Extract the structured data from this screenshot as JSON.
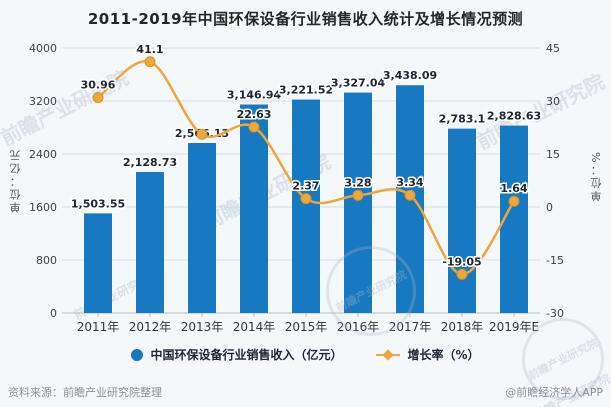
{
  "title": "2011-2019年中国环保设备行业销售收入统计及增长情况预测",
  "left_axis": {
    "unit": "单位：亿元",
    "ticks": [
      0,
      800,
      1600,
      2400,
      3200,
      4000
    ],
    "min": 0,
    "max": 4000
  },
  "right_axis": {
    "unit": "单位：%",
    "ticks": [
      -30,
      -15,
      0,
      15,
      30,
      45
    ],
    "min": -30,
    "max": 45
  },
  "chart_data": {
    "type": "bar+line",
    "title": "2011-2019年中国环保设备行业销售收入统计及增长情况预测",
    "categories": [
      "2011年",
      "2012年",
      "2013年",
      "2014年",
      "2015年",
      "2016年",
      "2017年",
      "2018年",
      "2019年E"
    ],
    "series": [
      {
        "name": "中国环保设备行业销售收入（亿元）",
        "type": "bar",
        "axis": "left",
        "values": [
          1503.55,
          2128.73,
          2566.13,
          3146.94,
          3221.52,
          3327.04,
          3438.09,
          2783.1,
          2828.63
        ],
        "labels": [
          "1,503.55",
          "2,128.73",
          "2,566.13",
          "3,146.94",
          "3,221.52",
          "3,327.04",
          "3,438.09",
          "2,783.1",
          "2,828.63"
        ],
        "color": "#1779c1"
      },
      {
        "name": "增长率（%）",
        "type": "line",
        "axis": "right",
        "values": [
          30.96,
          41.1,
          20.55,
          22.63,
          2.37,
          3.28,
          3.34,
          -19.05,
          1.64
        ],
        "labels": [
          "30.96",
          "41.1",
          "",
          "22.63",
          "2.37",
          "3.28",
          "3.34",
          "-19.05",
          "1.64"
        ],
        "color": "#eea63c"
      }
    ],
    "left_ylim": [
      0,
      4000
    ],
    "right_ylim": [
      -30,
      45
    ],
    "grid": true,
    "legend_position": "bottom"
  },
  "legend": [
    {
      "label": "中国环保设备行业销售收入（亿元）",
      "marker": "circle",
      "color": "#1779c1"
    },
    {
      "label": "增长率（%）",
      "marker": "diamond-line",
      "color": "#eea63c"
    }
  ],
  "footer": {
    "source": "资料来源：前瞻产业研究院整理",
    "credit": "@前瞻经济学人APP"
  },
  "watermark": {
    "text": "前瞻产业研究院"
  },
  "colors": {
    "bar": "#1779c1",
    "line": "#eea63c",
    "marker_fill": "#f0a73a",
    "marker_stroke": "#d8922a",
    "data_label": "#1d2433",
    "grid": "#d6dbe2",
    "axis_line": "#b9bfc8",
    "tick_text": "#3c4148",
    "background": "#f5f8fb"
  }
}
